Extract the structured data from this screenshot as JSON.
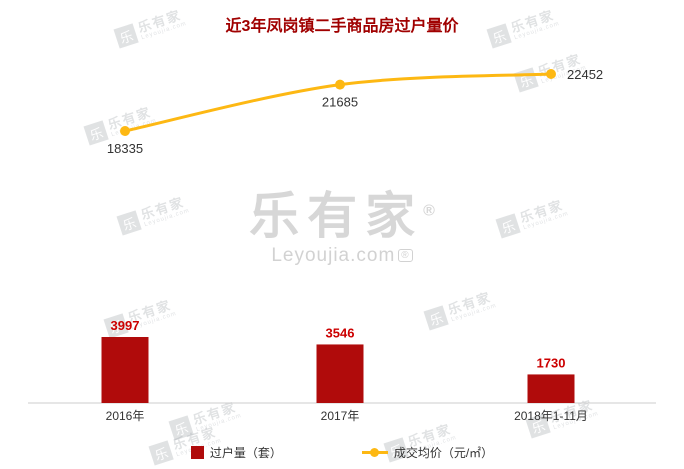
{
  "watermark": {
    "brand": "乐有家",
    "domain": "Leyoujia.com",
    "reg": "®"
  },
  "chart_data": {
    "type": "combo",
    "title": "近3年凤岗镇二手商品房过户量价",
    "title_color": "#a00000",
    "categories": [
      "2016年",
      "2017年",
      "2018年1-11月"
    ],
    "series": [
      {
        "name": "过户量（套）",
        "type": "bar",
        "values": [
          3997,
          3546,
          1730
        ],
        "color": "#b00b0b",
        "label_color": "#cc0000"
      },
      {
        "name": "成交均价（元/㎡）",
        "type": "line",
        "values": [
          18335,
          21685,
          22452
        ],
        "color": "#fdb813",
        "label_color": "#333333"
      }
    ],
    "legend_position": "bottom",
    "grid": false,
    "axis_color": "#cccccc",
    "axis_label_color": "#333333"
  }
}
